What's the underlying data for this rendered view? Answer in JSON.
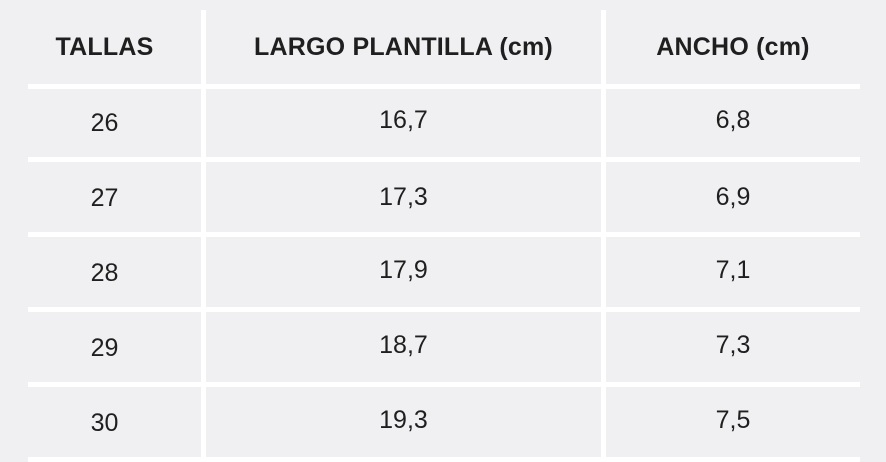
{
  "chart_data": {
    "type": "table",
    "columns": [
      "TALLAS",
      "LARGO PLANTILLA (cm)",
      "ANCHO (cm)"
    ],
    "rows": [
      [
        "26",
        "16,7",
        "6,8"
      ],
      [
        "27",
        "17,3",
        "6,9"
      ],
      [
        "28",
        "17,9",
        "7,1"
      ],
      [
        "29",
        "18,7",
        "7,3"
      ],
      [
        "30",
        "19,3",
        "7,5"
      ]
    ]
  },
  "colors": {
    "background": "#f0f0f2",
    "grid_lines": "#ffffff",
    "text": "#1f1f1f"
  }
}
